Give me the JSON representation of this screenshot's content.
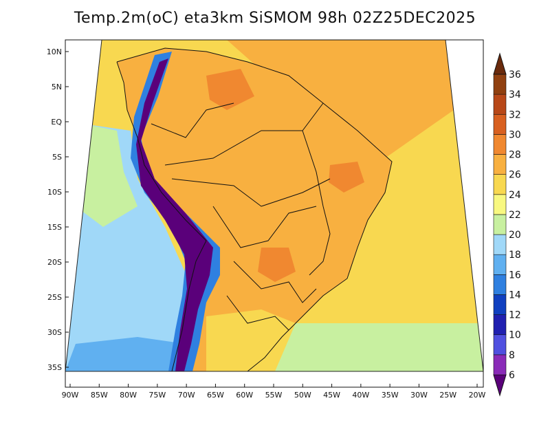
{
  "title": "Temp.2m(oC) eta3km SiSMOM 98h 02Z25DEC2025",
  "axes": {
    "lat_labels": [
      "10N",
      "5N",
      "EQ",
      "5S",
      "10S",
      "15S",
      "20S",
      "25S",
      "30S",
      "35S"
    ],
    "lon_labels": [
      "90W",
      "85W",
      "80W",
      "75W",
      "70W",
      "65W",
      "60W",
      "55W",
      "50W",
      "45W",
      "40W",
      "35W",
      "30W",
      "25W",
      "20W"
    ]
  },
  "colorbar": {
    "levels": [
      "6",
      "8",
      "10",
      "12",
      "14",
      "16",
      "18",
      "20",
      "22",
      "24",
      "26",
      "28",
      "30",
      "32",
      "34",
      "36"
    ],
    "colors": [
      "#5a007a",
      "#8a2bb8",
      "#5050e0",
      "#2020b0",
      "#1040c0",
      "#2f80e0",
      "#60b0f0",
      "#a0d8f8",
      "#c8f0a0",
      "#f8f880",
      "#f8d850",
      "#f8b040",
      "#f08830",
      "#d86020",
      "#b84818",
      "#904010",
      "#6a2a0c"
    ]
  },
  "map_colors": {
    "ocean_cool": "#a0d8f8",
    "ocean_green": "#c8f0a0",
    "ocean_warm": "#f8d850",
    "ocean_hot": "#f8b040",
    "land_warm": "#f8b040",
    "land_hot": "#f08830",
    "andes_cold": "#5a007a",
    "andes_mid": "#2f80e0",
    "south_cool": "#60b0f0"
  }
}
